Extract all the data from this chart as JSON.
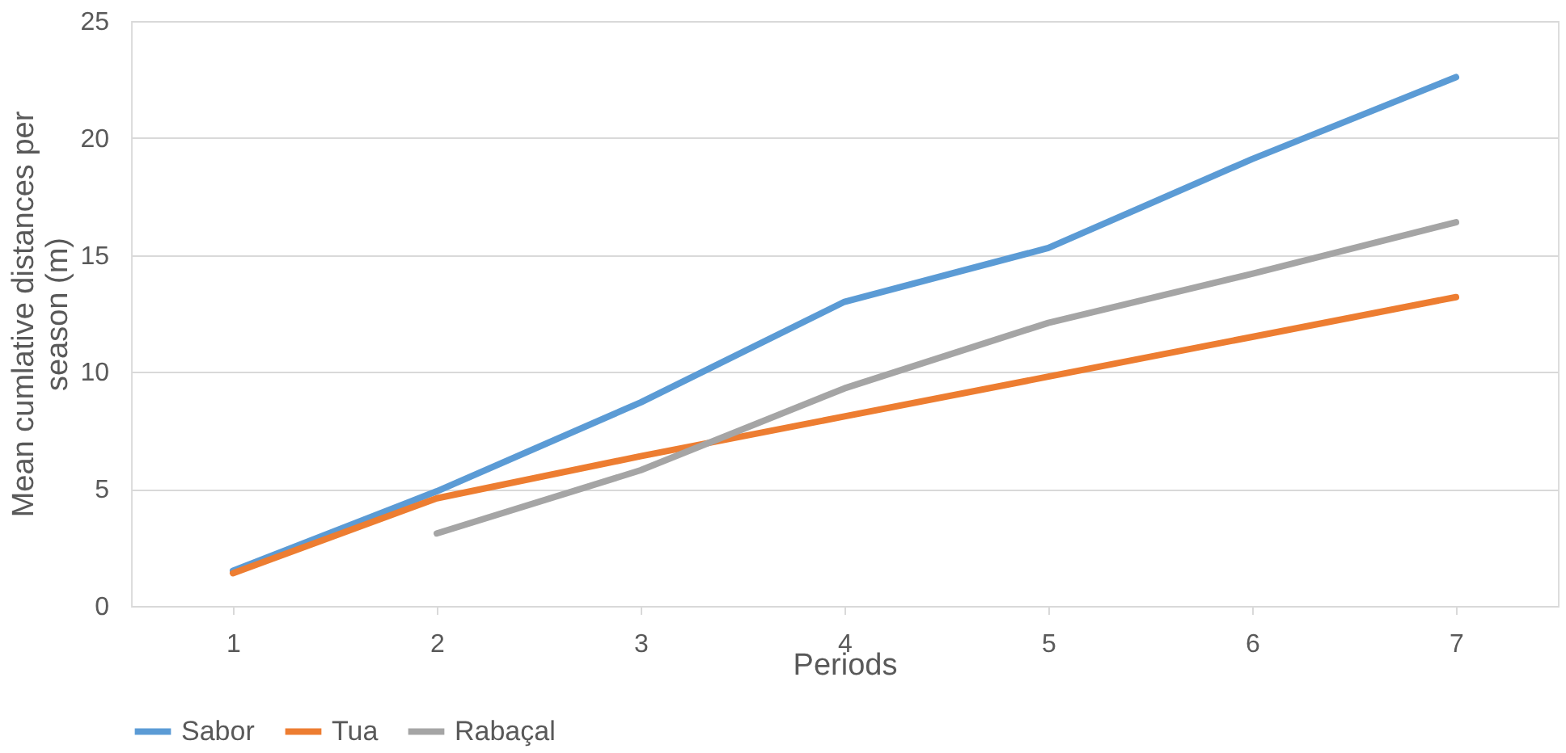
{
  "chart_data": {
    "type": "line",
    "xlabel": "Periods",
    "ylabel": "Mean cumlative distances per season (m)",
    "categories": [
      "1",
      "2",
      "3",
      "4",
      "5",
      "6",
      "7"
    ],
    "series": [
      {
        "name": "Sabor",
        "color": "#5b9bd5",
        "values": [
          1.5,
          4.9,
          8.7,
          13.0,
          15.3,
          19.1,
          22.6
        ]
      },
      {
        "name": "Tua",
        "color": "#ed7d31",
        "values": [
          1.4,
          4.6,
          6.4,
          8.1,
          9.8,
          11.5,
          13.2
        ]
      },
      {
        "name": "Rabaçal",
        "color": "#a5a5a5",
        "values": [
          null,
          3.1,
          5.8,
          9.3,
          12.1,
          14.2,
          16.4
        ]
      }
    ],
    "ylim": [
      0,
      25
    ],
    "yticks": [
      0,
      5,
      10,
      15,
      20,
      25
    ],
    "grid": "y",
    "legend": "bottom",
    "marker": "none",
    "line_style": "solid"
  }
}
